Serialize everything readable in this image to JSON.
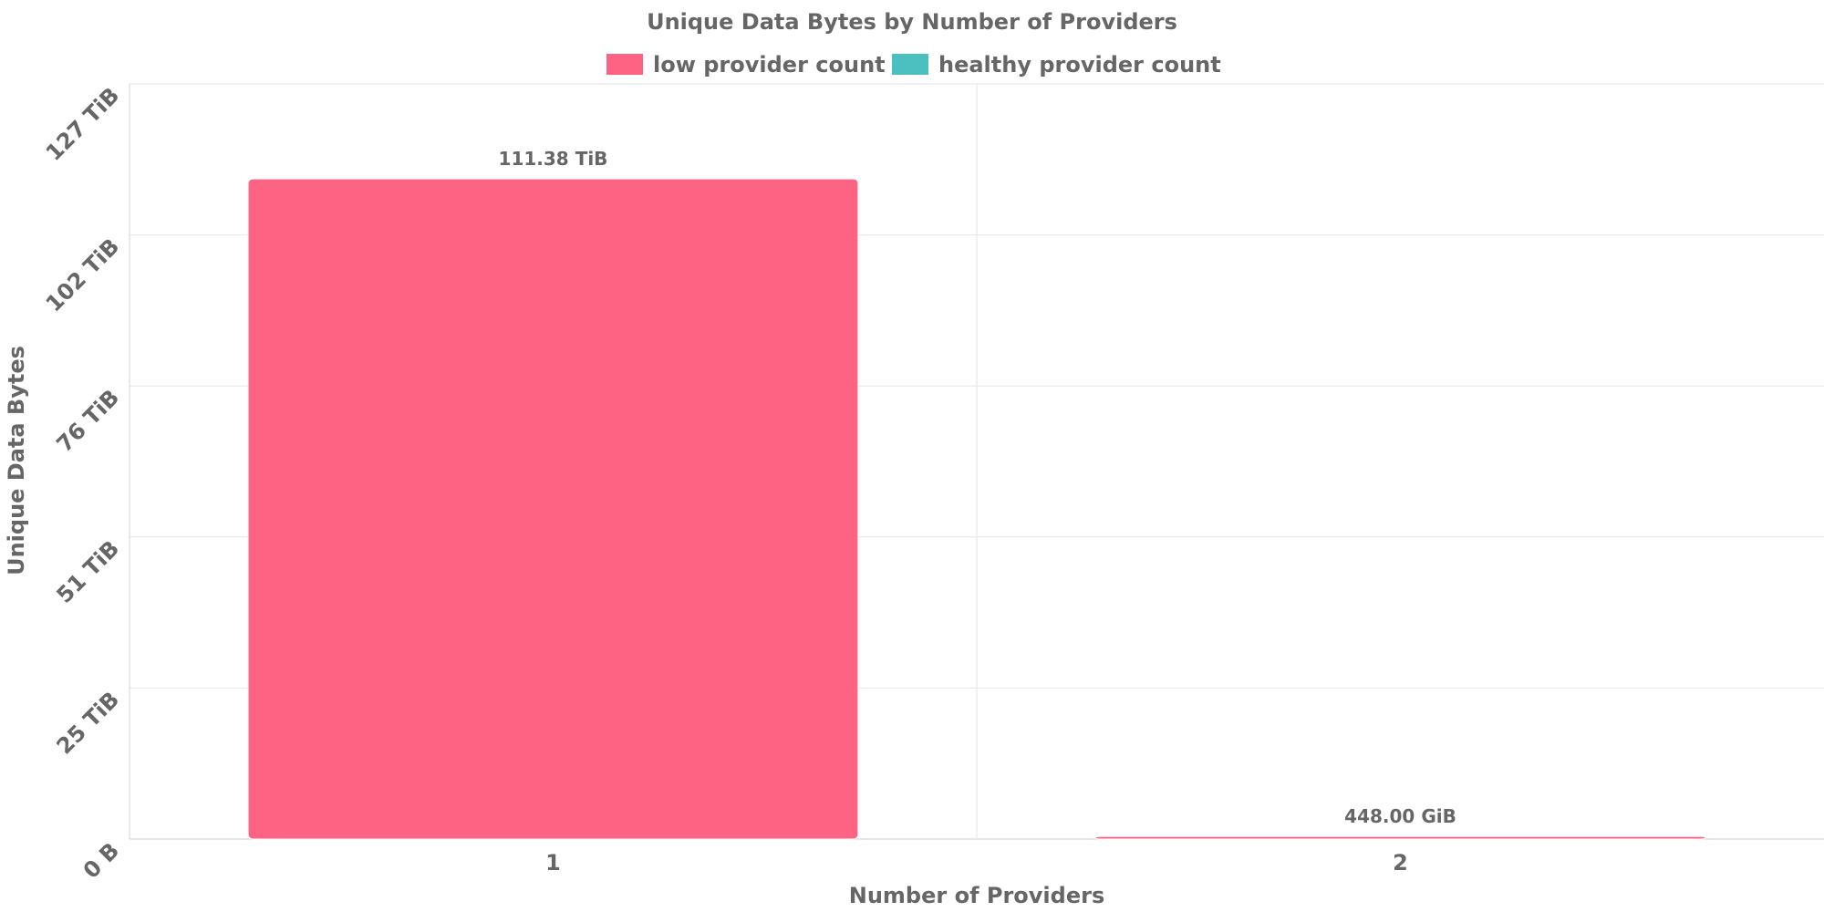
{
  "chart_data": {
    "type": "bar",
    "title": "Unique Data Bytes by Number of Providers",
    "xlabel": "Number of Providers",
    "ylabel": "Unique Data Bytes",
    "categories": [
      "1",
      "2"
    ],
    "series": [
      {
        "name": "low provider count",
        "color": "#ff6384",
        "values_tib": [
          111.38,
          0.4375
        ],
        "labels": [
          "111.38 TiB",
          "448.00 GiB"
        ]
      },
      {
        "name": "healthy provider count",
        "color": "#4bc0c0",
        "values_tib": [
          0,
          0
        ],
        "labels": [
          "",
          ""
        ]
      }
    ],
    "y_unit": "TiB",
    "ylim_tib": [
      0,
      127.4
    ],
    "y_ticks": [
      {
        "value": 0,
        "label": "0 B"
      },
      {
        "value": 25.48,
        "label": "25 TiB"
      },
      {
        "value": 50.96,
        "label": "51 TiB"
      },
      {
        "value": 76.44,
        "label": "76 TiB"
      },
      {
        "value": 101.92,
        "label": "102 TiB"
      },
      {
        "value": 127.4,
        "label": "127 TiB"
      }
    ],
    "grid": true,
    "legend_position": "top-center"
  }
}
